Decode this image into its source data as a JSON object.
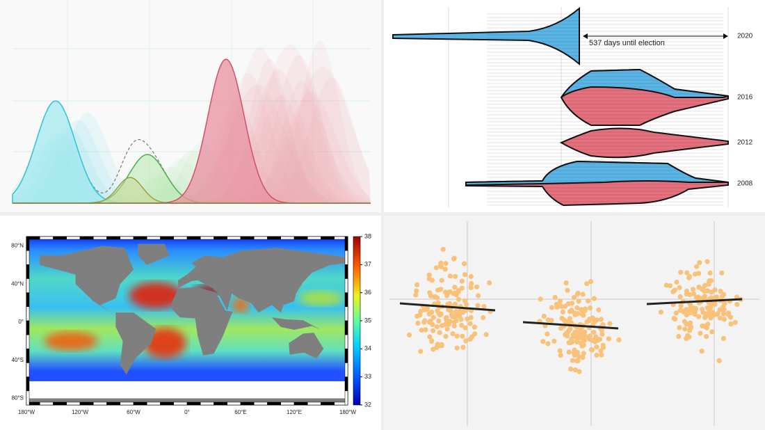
{
  "election": {
    "annotation": "537 days until election",
    "years": [
      "2020",
      "2016",
      "2012",
      "2008"
    ]
  },
  "salinity_map": {
    "colorbar_ticks": [
      32,
      33,
      34,
      35,
      36,
      37,
      38
    ],
    "lat_labels": [
      "80°N",
      "40°N",
      "0°",
      "40°S",
      "80°S"
    ],
    "lon_labels": [
      "180°W",
      "120°W",
      "60°W",
      "0°",
      "60°E",
      "120°E",
      "180°W"
    ]
  }
}
